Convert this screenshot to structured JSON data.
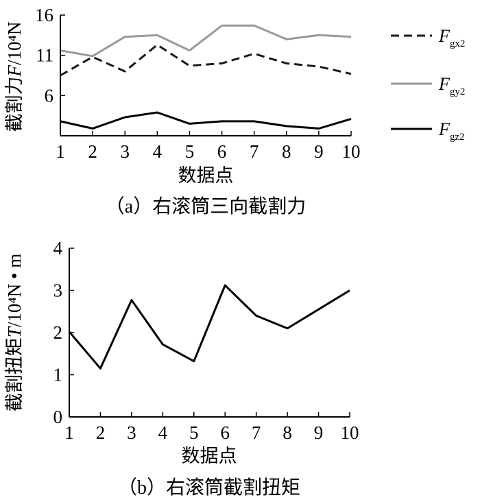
{
  "chart_data": [
    {
      "type": "line",
      "panel": "a",
      "caption": "（a）右滚筒三向截割力",
      "xlabel": "数据点",
      "ylabel_prefix": "截割力",
      "ylabel_var": "F",
      "ylabel_unit": "/10⁴N",
      "x": [
        1,
        2,
        3,
        4,
        5,
        6,
        7,
        8,
        9,
        10
      ],
      "xlim": [
        1,
        10
      ],
      "ylim": [
        1,
        16
      ],
      "yticks": [
        6,
        11,
        16
      ],
      "legend_position": "right",
      "series": [
        {
          "name": "Fgx2",
          "symbol": "F",
          "sub": "gx2",
          "color": "#1a1a1a",
          "dash": true,
          "values": [
            8.5,
            10.8,
            9.0,
            12.3,
            9.7,
            10.0,
            11.2,
            10.0,
            9.6,
            8.7
          ]
        },
        {
          "name": "Fgy2",
          "symbol": "F",
          "sub": "gy2",
          "color": "#999999",
          "dash": false,
          "values": [
            11.6,
            10.9,
            13.3,
            13.5,
            11.6,
            14.7,
            14.7,
            13.0,
            13.5,
            13.3
          ]
        },
        {
          "name": "Fgz2",
          "symbol": "F",
          "sub": "gz2",
          "color": "#000000",
          "dash": false,
          "values": [
            2.8,
            1.9,
            3.3,
            3.9,
            2.5,
            2.8,
            2.8,
            2.2,
            1.9,
            3.1
          ]
        }
      ]
    },
    {
      "type": "line",
      "panel": "b",
      "caption": "（b）右滚筒截割扭矩",
      "xlabel": "数据点",
      "ylabel_prefix": "截割扭矩",
      "ylabel_var": "T",
      "ylabel_unit": "/10⁴N • m",
      "x": [
        1,
        2,
        3,
        4,
        5,
        6,
        7,
        8,
        9,
        10
      ],
      "xlim": [
        1,
        10
      ],
      "ylim": [
        0,
        4
      ],
      "yticks": [
        0,
        1,
        2,
        3,
        4
      ],
      "series": [
        {
          "name": "T",
          "color": "#000000",
          "values": [
            2.02,
            1.15,
            2.77,
            1.72,
            1.32,
            3.12,
            2.4,
            2.1,
            2.55,
            3.0
          ]
        }
      ]
    }
  ]
}
